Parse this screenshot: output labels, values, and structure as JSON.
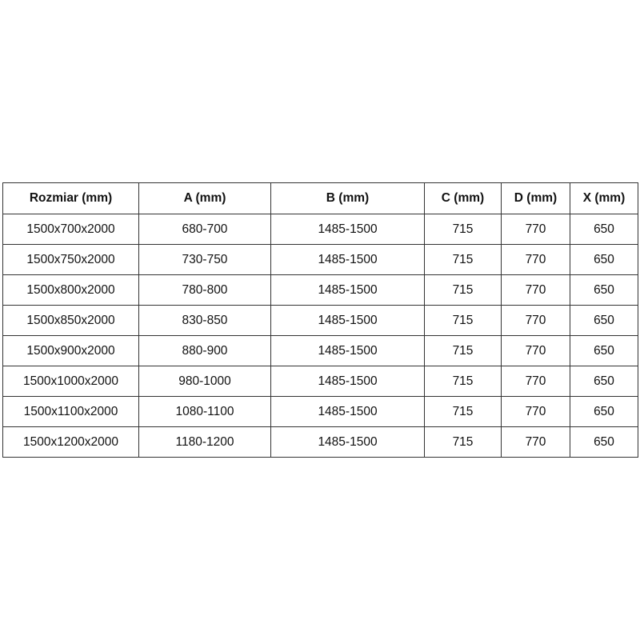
{
  "table": {
    "headers": [
      "Rozmiar (mm)",
      "A (mm)",
      "B (mm)",
      "C (mm)",
      "D (mm)",
      "X (mm)"
    ],
    "rows": [
      [
        "1500x700x2000",
        "680-700",
        "1485-1500",
        "715",
        "770",
        "650"
      ],
      [
        "1500x750x2000",
        "730-750",
        "1485-1500",
        "715",
        "770",
        "650"
      ],
      [
        "1500x800x2000",
        "780-800",
        "1485-1500",
        "715",
        "770",
        "650"
      ],
      [
        "1500x850x2000",
        "830-850",
        "1485-1500",
        "715",
        "770",
        "650"
      ],
      [
        "1500x900x2000",
        "880-900",
        "1485-1500",
        "715",
        "770",
        "650"
      ],
      [
        "1500x1000x2000",
        "980-1000",
        "1485-1500",
        "715",
        "770",
        "650"
      ],
      [
        "1500x1100x2000",
        "1080-1100",
        "1485-1500",
        "715",
        "770",
        "650"
      ],
      [
        "1500x1200x2000",
        "1180-1200",
        "1485-1500",
        "715",
        "770",
        "650"
      ]
    ]
  }
}
